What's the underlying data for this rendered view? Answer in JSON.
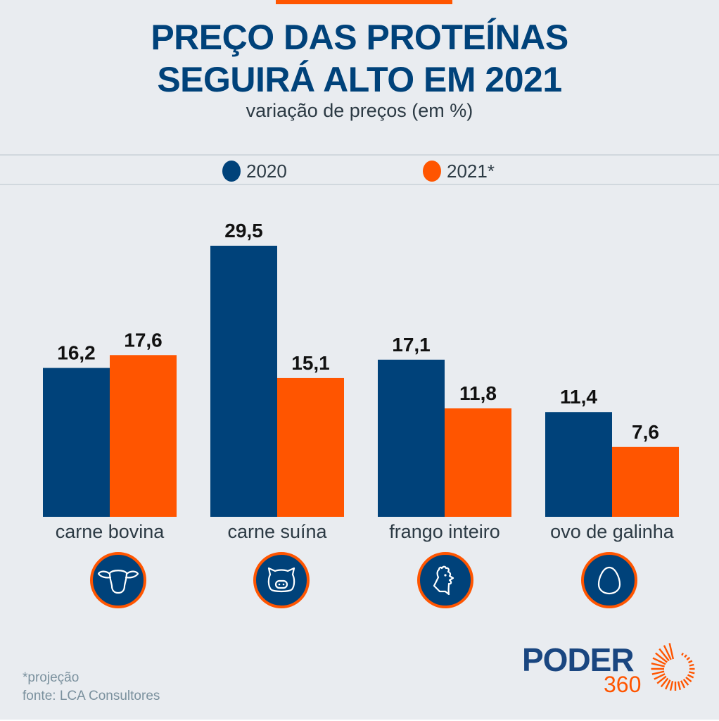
{
  "header": {
    "title_line1": "PREÇO DAS PROTEÍNAS",
    "title_line2": "SEGUIRÁ ALTO EM 2021",
    "subtitle": "variação de preços (em %)"
  },
  "colors": {
    "series_2020": "#00427a",
    "series_2021": "#ff5500",
    "accent": "#ff5500",
    "title": "#00427a",
    "background": "#e9ecf0"
  },
  "legend": [
    {
      "label": "2020",
      "color": "#00427a"
    },
    {
      "label": "2021*",
      "color": "#ff5500"
    }
  ],
  "chart_data": {
    "type": "bar",
    "title": "PREÇO DAS PROTEÍNAS SEGUIRÁ ALTO EM 2021",
    "subtitle": "variação de preços (em %)",
    "xlabel": "",
    "ylabel": "variação de preços (em %)",
    "categories": [
      "carne bovina",
      "carne suína",
      "frango inteiro",
      "ovo de galinha"
    ],
    "series": [
      {
        "name": "2020",
        "color": "#00427a",
        "values": [
          16.2,
          29.5,
          17.1,
          11.4
        ],
        "labels": [
          "16,2",
          "29,5",
          "17,1",
          "11,4"
        ]
      },
      {
        "name": "2021*",
        "color": "#ff5500",
        "values": [
          17.6,
          15.1,
          11.8,
          7.6
        ],
        "labels": [
          "17,6",
          "15,1",
          "11,8",
          "7,6"
        ]
      }
    ],
    "ylim": [
      0,
      29.5
    ],
    "grid": false,
    "legend_position": "top-center",
    "data_labels": true
  },
  "category_icons": [
    {
      "category": "carne bovina",
      "icon": "cow-icon"
    },
    {
      "category": "carne suína",
      "icon": "pig-icon"
    },
    {
      "category": "frango inteiro",
      "icon": "rooster-icon"
    },
    {
      "category": "ovo de galinha",
      "icon": "egg-icon"
    }
  ],
  "footer": {
    "note": "*projeção",
    "source": "fonte: LCA Consultores"
  },
  "logo": {
    "word": "PODER",
    "number": "360"
  }
}
